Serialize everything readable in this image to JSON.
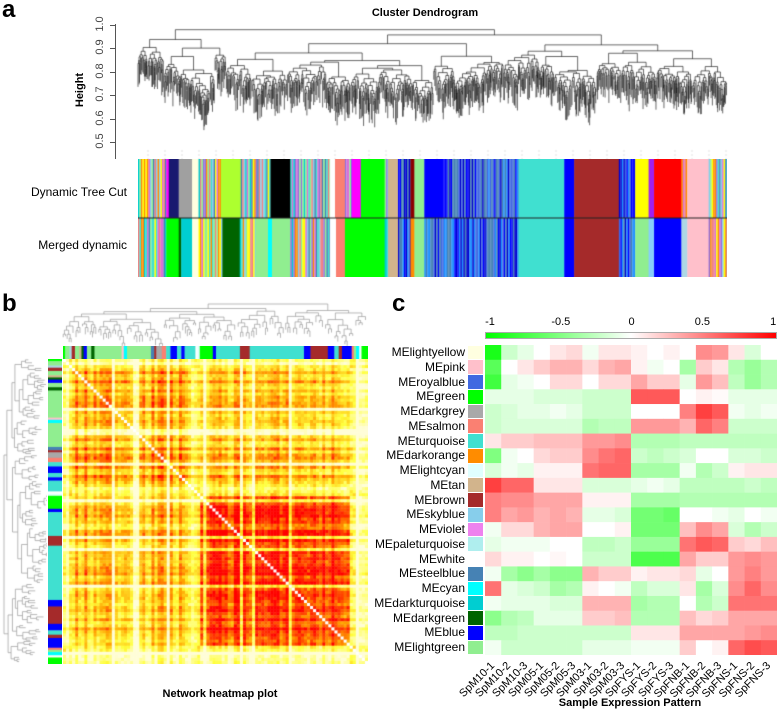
{
  "panel_a": {
    "letter": "a",
    "title": "Cluster Dendrogram",
    "ylabel": "Height",
    "yticks": [
      "1.0",
      "0.9",
      "0.8",
      "0.7",
      "0.6",
      "0.5"
    ],
    "bar_labels": [
      "Dynamic Tree Cut",
      "Merged dynamic"
    ],
    "dynamic_tree_cut": [
      [
        "mix",
        57
      ],
      [
        "#ff00ff",
        5
      ],
      [
        "#191970",
        20
      ],
      [
        "#a0a0a0",
        27
      ],
      [
        "#ffffe0",
        13
      ],
      [
        "mix",
        45
      ],
      [
        "#adff2f",
        40
      ],
      [
        "mix",
        60
      ],
      [
        "#000000",
        40
      ],
      [
        "mix",
        80
      ],
      [
        "#ffffff",
        10
      ],
      [
        "#fa8072",
        20
      ],
      [
        "mix",
        13
      ],
      [
        "#ff00ff",
        19
      ],
      [
        "#00ff00",
        48
      ],
      [
        "mix",
        7
      ],
      [
        "#d2b48c",
        20
      ],
      [
        "mixblue",
        25
      ],
      [
        "#8b0000",
        8
      ],
      [
        "#90ee90",
        20
      ],
      [
        "#0000ff",
        35
      ],
      [
        "mixblue",
        155
      ],
      [
        "#40e0d0",
        92
      ],
      [
        "#0000ff",
        20
      ],
      [
        "#a52a2a",
        90
      ],
      [
        "mixblue",
        33
      ],
      [
        "#ffff00",
        27
      ],
      [
        "#a020f0",
        11
      ],
      [
        "#ff0000",
        55
      ],
      [
        "mix",
        12
      ],
      [
        "#ffc0cb",
        43
      ],
      [
        "mix",
        37
      ]
    ],
    "merged_dynamic": [
      [
        "mix",
        57
      ],
      [
        "#00ff00",
        25
      ],
      [
        "#006400",
        5
      ],
      [
        "#00ced1",
        22
      ],
      [
        "#ffffe0",
        13
      ],
      [
        "mix",
        48
      ],
      [
        "#006400",
        35
      ],
      [
        "mix",
        32
      ],
      [
        "#90ee90",
        25
      ],
      [
        "#00ffff",
        8
      ],
      [
        "#90ee90",
        37
      ],
      [
        "mix",
        80
      ],
      [
        "#ffffff",
        12
      ],
      [
        "#fa8072",
        18
      ],
      [
        "#00ff00",
        80
      ],
      [
        "mix",
        7
      ],
      [
        "#d2b48c",
        20
      ],
      [
        "mixblue",
        25
      ],
      [
        "#ff8c00",
        8
      ],
      [
        "#90ee90",
        20
      ],
      [
        "mixblue",
        190
      ],
      [
        "#40e0d0",
        92
      ],
      [
        "#0000ff",
        20
      ],
      [
        "#a52a2a",
        90
      ],
      [
        "mixblue",
        33
      ],
      [
        "#90ee90",
        27
      ],
      [
        "#87cefa",
        11
      ],
      [
        "#0000ff",
        55
      ],
      [
        "#add8e6",
        12
      ],
      [
        "#ffc0cb",
        43
      ],
      [
        "mix",
        37
      ]
    ]
  },
  "panel_b": {
    "letter": "b",
    "caption": "Network heatmap plot",
    "module_bar": [
      [
        "#00ff00",
        2
      ],
      [
        "#90ee90",
        4
      ],
      [
        "#add8e6",
        2
      ],
      [
        "#a52a2a",
        3
      ],
      [
        "#90ee90",
        4
      ],
      [
        "#d2b48c",
        2
      ],
      [
        "#006400",
        2
      ],
      [
        "#0000ff",
        3
      ],
      [
        "#90ee90",
        4
      ],
      [
        "#006400",
        3
      ],
      [
        "#90ee90",
        25
      ],
      [
        "#ffc0cb",
        2
      ],
      [
        "#00ffff",
        3
      ],
      [
        "#90ee90",
        22
      ],
      [
        "#4682b4",
        3
      ],
      [
        "#a52a2a",
        2
      ],
      [
        "#a9a9a9",
        5
      ],
      [
        "#fa8072",
        4
      ],
      [
        "#40e0d0",
        4
      ],
      [
        "#0000ff",
        6
      ],
      [
        "#40e0d0",
        4
      ],
      [
        "#0000ff",
        3
      ],
      [
        "#40e0d0",
        10
      ],
      [
        "#ffffff",
        2
      ],
      [
        "#e0ffff",
        2
      ],
      [
        "#00ff00",
        12
      ],
      [
        "#0000ff",
        3
      ],
      [
        "#40e0d0",
        22
      ],
      [
        "#a52a2a",
        9
      ],
      [
        "#40e0d0",
        50
      ],
      [
        "#0000ff",
        6
      ],
      [
        "#a52a2a",
        16
      ],
      [
        "#0000ff",
        6
      ],
      [
        "#40e0d0",
        4
      ],
      [
        "#a52a2a",
        3
      ],
      [
        "#0000ff",
        9
      ],
      [
        "#fa8072",
        2
      ],
      [
        "#90ee90",
        2
      ],
      [
        "#00ffff",
        3
      ],
      [
        "#ffffff",
        2
      ],
      [
        "#00ff00",
        6
      ]
    ]
  },
  "chart_data": {
    "type": "heatmap",
    "letter": "c",
    "xlabel": "Sample Expression Pattern",
    "colorbar": {
      "ticks": [
        "-1",
        "-0.5",
        "0",
        "0.5",
        "1"
      ],
      "range": [
        -1,
        1
      ],
      "low": "#00ff00",
      "mid": "#ffffff",
      "high": "#ff0000"
    },
    "columns": [
      "SpM10-1",
      "SpM10-2",
      "SpM10-3",
      "SpM05-1",
      "SpM05-2",
      "SpM05-3",
      "SpM03-1",
      "SpM03-2",
      "SpM03-3",
      "SpFYS-1",
      "SpFYS-2",
      "SpFYS-3",
      "SpFNB-1",
      "SpFNB-2",
      "SpFNB-3",
      "SpFNS-1",
      "SpFNS-2",
      "SpFNS-3"
    ],
    "rows": [
      {
        "name": "MElightyellow",
        "color": "#ffffe0",
        "values": [
          -0.9,
          -0.2,
          -0.1,
          0,
          0.1,
          0.15,
          -0.05,
          0.1,
          0.1,
          0.05,
          0,
          0.05,
          0,
          0.45,
          0.4,
          0.1,
          -0.15,
          0
        ]
      },
      {
        "name": "MEpink",
        "color": "#ffc0cb",
        "values": [
          -0.65,
          0,
          0.1,
          0.2,
          0.3,
          0.3,
          0.15,
          0.3,
          0.35,
          0.05,
          -0.05,
          0,
          -0.35,
          0.2,
          0.1,
          -0.3,
          -0.4,
          -0.3
        ]
      },
      {
        "name": "MEroyalblue",
        "color": "#4169e1",
        "values": [
          -0.75,
          -0.1,
          -0.05,
          0,
          0.15,
          0.15,
          0,
          0.15,
          0.15,
          0.35,
          0.2,
          0.2,
          -0.1,
          0.4,
          0.25,
          -0.25,
          -0.4,
          -0.3
        ]
      },
      {
        "name": "MEgreen",
        "color": "#00ff00",
        "values": [
          -0.1,
          -0.1,
          -0.1,
          -0.15,
          -0.15,
          -0.15,
          -0.2,
          -0.2,
          -0.2,
          0.65,
          0.65,
          0.65,
          0,
          0.05,
          0.02,
          -0.1,
          -0.1,
          -0.1
        ]
      },
      {
        "name": "MEdarkgrey",
        "color": "#a9a9a9",
        "values": [
          -0.2,
          -0.15,
          -0.1,
          -0.1,
          -0.05,
          -0.1,
          -0.2,
          -0.2,
          -0.2,
          0,
          0,
          0,
          0.5,
          0.75,
          0.65,
          -0.05,
          -0.1,
          -0.05
        ]
      },
      {
        "name": "MEsalmon",
        "color": "#fa8072",
        "values": [
          -0.2,
          -0.15,
          -0.15,
          -0.15,
          -0.15,
          -0.15,
          -0.3,
          -0.25,
          -0.25,
          0.4,
          0.4,
          0.4,
          0.3,
          0.6,
          0.5,
          -0.2,
          -0.2,
          -0.2
        ]
      },
      {
        "name": "MEturquoise",
        "color": "#40e0d0",
        "values": [
          0.1,
          0.2,
          0.2,
          0.25,
          0.25,
          0.25,
          0.4,
          0.4,
          0.45,
          -0.3,
          -0.3,
          -0.3,
          -0.25,
          -0.25,
          -0.25,
          -0.25,
          -0.25,
          -0.25
        ]
      },
      {
        "name": "MEdarkorange",
        "color": "#ff8c00",
        "values": [
          -0.5,
          -0.05,
          0,
          0.15,
          0.2,
          0.2,
          0.45,
          0.55,
          0.6,
          -0.2,
          -0.25,
          -0.2,
          -0.15,
          0,
          0,
          -0.15,
          -0.15,
          -0.2
        ]
      },
      {
        "name": "MElightcyan",
        "color": "#e0ffff",
        "values": [
          -0.15,
          -0.05,
          -0.1,
          0.05,
          0.05,
          0.05,
          0.55,
          0.6,
          0.6,
          -0.35,
          -0.35,
          -0.35,
          -0.05,
          -0.3,
          -0.2,
          0.05,
          0.1,
          0.1
        ]
      },
      {
        "name": "MEtan",
        "color": "#d2b48c",
        "values": [
          0.75,
          0.6,
          0.6,
          0.1,
          0.1,
          0.1,
          -0.15,
          -0.15,
          -0.15,
          -0.1,
          -0.05,
          -0.1,
          -0.25,
          -0.25,
          -0.25,
          -0.25,
          -0.2,
          -0.25
        ]
      },
      {
        "name": "MEbrown",
        "color": "#a52a2a",
        "values": [
          0.5,
          0.45,
          0.45,
          0.35,
          0.35,
          0.35,
          0.05,
          0.05,
          0.05,
          -0.35,
          -0.35,
          -0.35,
          -0.3,
          -0.3,
          -0.3,
          -0.3,
          -0.3,
          -0.3
        ]
      },
      {
        "name": "MEskyblue",
        "color": "#87ceeb",
        "values": [
          0.5,
          0.35,
          0.4,
          0.3,
          0.35,
          0.3,
          -0.1,
          -0.1,
          -0.15,
          -0.55,
          -0.55,
          -0.6,
          0,
          0,
          -0.05,
          -0.1,
          0,
          -0.05
        ]
      },
      {
        "name": "MEviolet",
        "color": "#ee82ee",
        "values": [
          -0.05,
          0.15,
          0.15,
          0.3,
          0.35,
          0.35,
          0,
          0,
          0.05,
          -0.55,
          -0.55,
          -0.55,
          0.25,
          0.45,
          0.35,
          -0.15,
          -0.3,
          -0.2
        ]
      },
      {
        "name": "MEpaleturquoise",
        "color": "#afeeee",
        "values": [
          -0.1,
          -0.05,
          -0.05,
          -0.05,
          0,
          0,
          -0.25,
          -0.25,
          -0.2,
          -0.4,
          -0.4,
          -0.4,
          0.55,
          0.65,
          0.6,
          0.2,
          0.15,
          0.25
        ]
      },
      {
        "name": "MEwhite",
        "color": "#ffffff",
        "values": [
          0.15,
          0.05,
          0.05,
          0,
          0.03,
          0,
          -0.2,
          -0.2,
          -0.2,
          -0.7,
          -0.7,
          -0.7,
          0.35,
          0.2,
          0.2,
          0.4,
          0.45,
          0.4
        ]
      },
      {
        "name": "MEsteelblue",
        "color": "#4682b4",
        "values": [
          -0.05,
          -0.35,
          -0.45,
          -0.35,
          -0.45,
          -0.45,
          0.3,
          0.2,
          0.2,
          0.05,
          0.1,
          0.1,
          0.15,
          -0.1,
          0,
          0.4,
          0.5,
          0.4
        ]
      },
      {
        "name": "MEcyan",
        "color": "#00ffff",
        "values": [
          0.55,
          -0.1,
          -0.15,
          -0.2,
          -0.35,
          -0.3,
          0.05,
          0,
          -0.05,
          -0.25,
          -0.15,
          -0.15,
          0.1,
          -0.35,
          -0.15,
          0.45,
          0.6,
          0.45
        ]
      },
      {
        "name": "MEdarkturquoise",
        "color": "#00ced1",
        "values": [
          -0.05,
          -0.1,
          -0.1,
          -0.1,
          -0.15,
          -0.15,
          0.3,
          0.3,
          0.3,
          -0.35,
          -0.3,
          -0.3,
          0,
          -0.3,
          -0.2,
          0.55,
          0.55,
          0.55
        ]
      },
      {
        "name": "MEdarkgreen",
        "color": "#006400",
        "values": [
          -0.45,
          -0.3,
          -0.25,
          -0.1,
          -0.1,
          -0.1,
          0.2,
          0.2,
          0.25,
          -0.3,
          -0.3,
          -0.3,
          0.25,
          0.15,
          0.2,
          0.35,
          0.35,
          0.35
        ]
      },
      {
        "name": "MEblue",
        "color": "#0000ff",
        "values": [
          -0.25,
          -0.25,
          -0.2,
          -0.2,
          -0.2,
          -0.2,
          -0.2,
          -0.2,
          -0.2,
          0.1,
          0.1,
          0.1,
          0.35,
          0.35,
          0.35,
          0.35,
          0.4,
          0.45
        ]
      },
      {
        "name": "MElightgreen",
        "color": "#90ee90",
        "values": [
          -0.05,
          -0.2,
          -0.2,
          -0.2,
          -0.2,
          -0.2,
          -0.1,
          -0.1,
          -0.1,
          -0.05,
          -0.05,
          -0.05,
          0.2,
          0,
          0.05,
          0.6,
          0.7,
          0.65
        ]
      }
    ]
  }
}
